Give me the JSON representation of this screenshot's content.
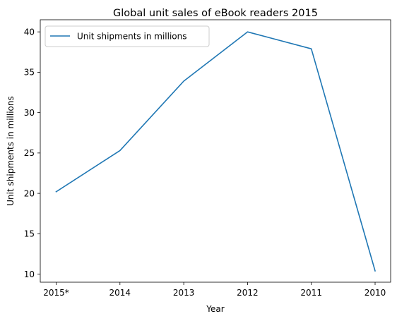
{
  "chart_data": {
    "type": "line",
    "title": "Global unit sales of eBook readers 2015",
    "xlabel": "Year",
    "ylabel": "Unit shipments in millions",
    "categories": [
      "2015*",
      "2014",
      "2013",
      "2012",
      "2011",
      "2010"
    ],
    "series": [
      {
        "name": "Unit shipments in millions",
        "values": [
          20.2,
          25.3,
          33.9,
          40.0,
          37.9,
          10.4
        ],
        "color": "#1f77b4"
      }
    ],
    "ylim": [
      9.0,
      41.5
    ],
    "yticks": [
      10,
      15,
      20,
      25,
      30,
      35,
      40
    ],
    "grid": false,
    "legend_position": "top-left"
  }
}
